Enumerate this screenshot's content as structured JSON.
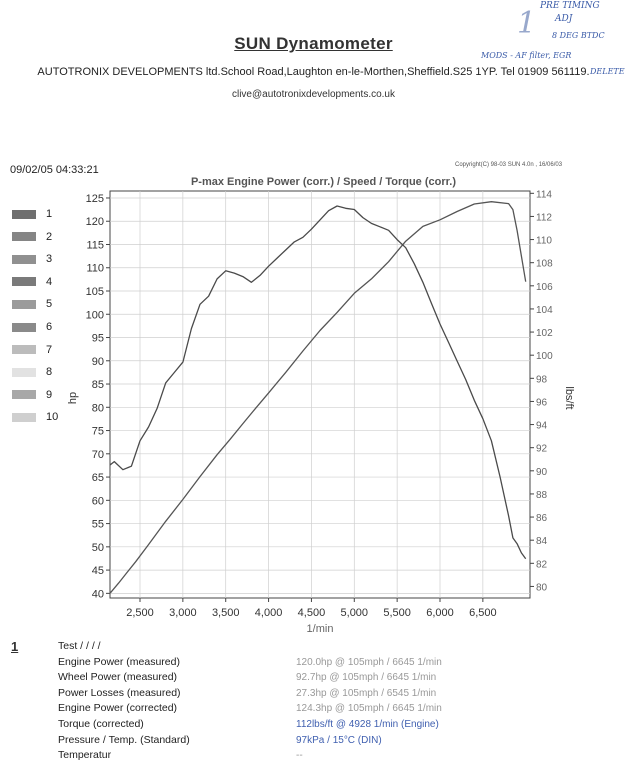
{
  "header": {
    "title": "SUN Dynamometer",
    "company": "AUTOTRONIX DEVELOPMENTS ltd.School Road,Laughton en-le-Morthen,Sheffield.S25 1YP. Tel 01909 561119.",
    "email": "clive@autotronixdevelopments.co.uk"
  },
  "handwriting": {
    "line1": "PRE TIMING",
    "line2": "ADJ",
    "line3": "8 DEG BTDC",
    "big_number": "1",
    "mods": "MODS - AF filter, EGR",
    "delete": "DELETE"
  },
  "report": {
    "datetime": "09/02/05 04:33:21",
    "copyright": "Copyright(C) 98-03 SUN 4.0n , 16/06/03"
  },
  "legend": {
    "items": [
      "1",
      "2",
      "3",
      "4",
      "5",
      "6",
      "7",
      "8",
      "9",
      "10"
    ],
    "colors": [
      "#6f6f6f",
      "#858585",
      "#909090",
      "#7a7a7a",
      "#9b9b9b",
      "#8a8a8a",
      "#bcbcbc",
      "#e2e2e2",
      "#a8a8a8",
      "#cfcfcf"
    ]
  },
  "chart_data": {
    "type": "line",
    "title": "P-max Engine Power (corr.) / Speed / Torque (corr.)",
    "xlabel": "1/min",
    "ylabel": "hp",
    "y2label": "lbs/ft",
    "xlim": [
      2150,
      7050
    ],
    "ylim": [
      39,
      126.5
    ],
    "y2lim": [
      79,
      114.2
    ],
    "xticks": [
      2500,
      3000,
      3500,
      4000,
      4500,
      5000,
      5500,
      6000,
      6500
    ],
    "xtick_labels": [
      "2,500",
      "3,000",
      "3,500",
      "4,000",
      "4,500",
      "5,000",
      "5,500",
      "6,000",
      "6,500"
    ],
    "yticks": [
      40,
      45,
      50,
      55,
      60,
      65,
      70,
      75,
      80,
      85,
      90,
      95,
      100,
      105,
      110,
      115,
      120,
      125
    ],
    "y2ticks": [
      80,
      82,
      84,
      86,
      88,
      90,
      92,
      94,
      96,
      98,
      100,
      102,
      104,
      106,
      108,
      110,
      112,
      114
    ],
    "grid": true,
    "series": [
      {
        "name": "",
        "axis": "left",
        "color": "#555555",
        "x": [
          2150,
          2250,
          2350,
          2450,
          2600,
          2800,
          3000,
          3200,
          3400,
          3550,
          3700,
          3850,
          4000,
          4200,
          4400,
          4600,
          4800,
          5000,
          5200,
          5400,
          5600,
          5800,
          6000,
          6200,
          6400,
          6600,
          6800,
          6850,
          6900,
          7000
        ],
        "y": [
          40,
          42.2,
          44.5,
          46.8,
          50.5,
          55.5,
          60.2,
          65.1,
          69.8,
          73.1,
          76.5,
          79.8,
          83.1,
          87.5,
          92.1,
          96.5,
          100.4,
          104.5,
          107.6,
          111.3,
          115.7,
          118.9,
          120.3,
          122.1,
          123.7,
          124.2,
          123.8,
          122.5,
          118,
          107
        ]
      },
      {
        "name": "",
        "axis": "right",
        "color": "#4a4a4a",
        "x": [
          2150,
          2200,
          2300,
          2400,
          2500,
          2600,
          2700,
          2800,
          2900,
          3000,
          3100,
          3200,
          3300,
          3400,
          3500,
          3600,
          3700,
          3800,
          3900,
          4000,
          4100,
          4200,
          4300,
          4400,
          4500,
          4600,
          4700,
          4800,
          4900,
          5000,
          5100,
          5200,
          5300,
          5400,
          5500,
          5600,
          5700,
          5800,
          5900,
          6000,
          6100,
          6200,
          6300,
          6400,
          6500,
          6600,
          6700,
          6800,
          6850,
          6900,
          6950,
          7000
        ],
        "y": [
          90.5,
          90.8,
          90.1,
          90.4,
          92.6,
          93.8,
          95.4,
          97.6,
          98.5,
          99.4,
          102.3,
          104.4,
          105.1,
          106.6,
          107.3,
          107.1,
          106.8,
          106.3,
          106.9,
          107.7,
          108.4,
          109.1,
          109.8,
          110.2,
          110.9,
          111.7,
          112.5,
          112.9,
          112.7,
          112.6,
          111.9,
          111.4,
          111.1,
          110.8,
          110.0,
          109.3,
          107.9,
          106.3,
          104.5,
          102.7,
          101.1,
          99.5,
          97.9,
          96.1,
          94.5,
          92.6,
          89.5,
          86.1,
          84.2,
          83.7,
          82.9,
          82.4
        ]
      }
    ]
  },
  "results": {
    "number": "1",
    "rows": [
      {
        "label": "Test / / / /",
        "value": ""
      },
      {
        "label": "Engine Power (measured)",
        "value": "120.0hp @ 105mph / 6645 1/min"
      },
      {
        "label": "Wheel Power (measured)",
        "value": "92.7hp @ 105mph / 6645 1/min"
      },
      {
        "label": "Power Losses (measured)",
        "value": "27.3hp @ 105mph / 6545 1/min"
      },
      {
        "label": "Engine Power (corrected)",
        "value": "124.3hp @ 105mph / 6645 1/min"
      },
      {
        "label": "Torque (corrected)",
        "value": "112lbs/ft @ 4928 1/min (Engine)"
      },
      {
        "label": "Pressure / Temp. (Standard)",
        "value": "97kPa / 15°C (DIN)"
      },
      {
        "label": "Temperatur",
        "value": "--"
      }
    ]
  }
}
